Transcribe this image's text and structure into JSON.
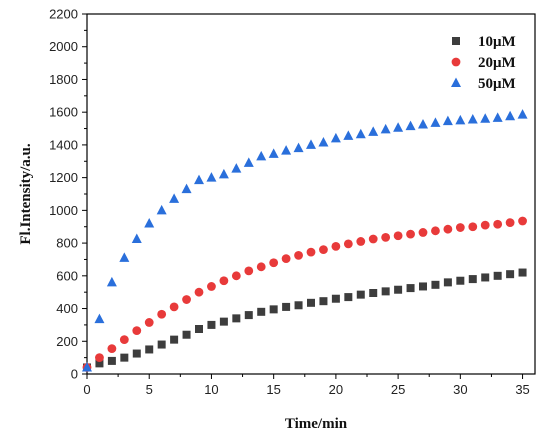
{
  "chart_data": {
    "type": "scatter",
    "title": "",
    "xlabel": "Time/min",
    "ylabel": "Fl.Intensity/a.u.",
    "xlim": [
      0,
      36
    ],
    "ylim": [
      0,
      2200
    ],
    "xticks": [
      0,
      5,
      10,
      15,
      20,
      25,
      30,
      35
    ],
    "yticks": [
      0,
      200,
      400,
      600,
      800,
      1000,
      1200,
      1400,
      1600,
      1800,
      2000,
      2200
    ],
    "legend_position": "top-right",
    "grid": false,
    "x": [
      0,
      1,
      2,
      3,
      4,
      5,
      6,
      7,
      8,
      9,
      10,
      11,
      12,
      13,
      14,
      15,
      16,
      17,
      18,
      19,
      20,
      21,
      22,
      23,
      24,
      25,
      26,
      27,
      28,
      29,
      30,
      31,
      32,
      33,
      34,
      35
    ],
    "series": [
      {
        "name": "10μM",
        "marker": "square",
        "color": "#3d3d3d",
        "values": [
          40,
          65,
          80,
          100,
          125,
          150,
          180,
          210,
          240,
          275,
          300,
          320,
          340,
          360,
          380,
          395,
          410,
          420,
          435,
          445,
          460,
          470,
          485,
          495,
          505,
          515,
          525,
          535,
          545,
          560,
          570,
          580,
          590,
          600,
          610,
          620
        ]
      },
      {
        "name": "20μM",
        "marker": "circle",
        "color": "#e83a3a",
        "values": [
          40,
          100,
          155,
          210,
          265,
          315,
          365,
          410,
          455,
          500,
          535,
          570,
          600,
          630,
          655,
          680,
          705,
          725,
          745,
          760,
          780,
          795,
          810,
          825,
          835,
          845,
          855,
          865,
          875,
          885,
          895,
          900,
          910,
          915,
          925,
          935
        ]
      },
      {
        "name": "50μM",
        "marker": "triangle",
        "color": "#2a6fdb",
        "values": [
          40,
          335,
          560,
          710,
          825,
          920,
          1000,
          1070,
          1130,
          1185,
          1200,
          1220,
          1255,
          1290,
          1330,
          1345,
          1365,
          1380,
          1400,
          1415,
          1440,
          1455,
          1465,
          1480,
          1495,
          1505,
          1515,
          1525,
          1535,
          1545,
          1550,
          1555,
          1560,
          1565,
          1575,
          1585
        ]
      }
    ]
  }
}
